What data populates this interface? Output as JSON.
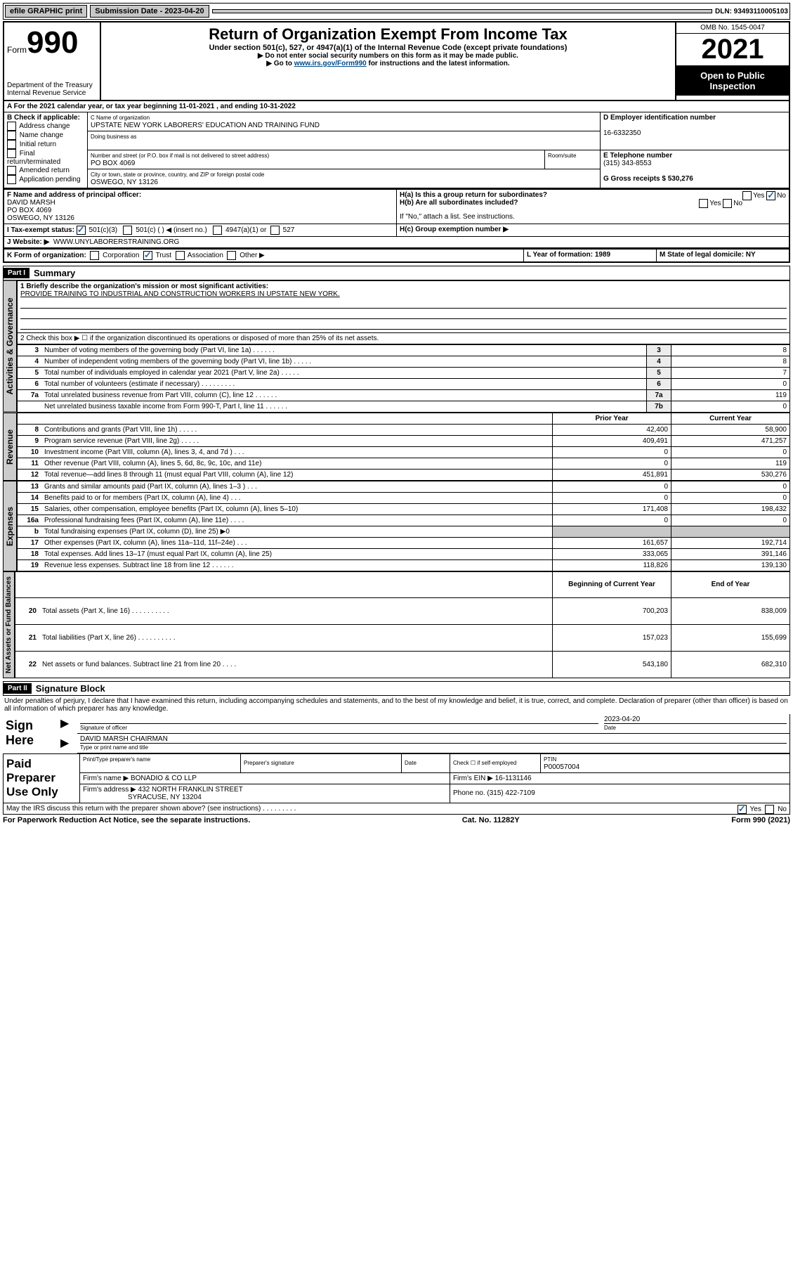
{
  "topbar": {
    "efile": "efile GRAPHIC print",
    "submission_label": "Submission Date - 2023-04-20",
    "dln_label": "DLN: 93493110005103"
  },
  "header": {
    "form_word": "Form",
    "form_number": "990",
    "dept": "Department of the Treasury",
    "irs": "Internal Revenue Service",
    "title": "Return of Organization Exempt From Income Tax",
    "subtitle": "Under section 501(c), 527, or 4947(a)(1) of the Internal Revenue Code (except private foundations)",
    "instr1": "▶ Do not enter social security numbers on this form as it may be made public.",
    "instr2_pre": "▶ Go to ",
    "instr2_link": "www.irs.gov/Form990",
    "instr2_post": " for instructions and the latest information.",
    "omb": "OMB No. 1545-0047",
    "year": "2021",
    "open": "Open to Public Inspection"
  },
  "A": {
    "line": "A For the 2021 calendar year, or tax year beginning 11-01-2021   , and ending 10-31-2022"
  },
  "B": {
    "label": "B Check if applicable:",
    "opts": [
      "Address change",
      "Name change",
      "Initial return",
      "Final return/terminated",
      "Amended return",
      "Application pending"
    ]
  },
  "C": {
    "name_label": "C Name of organization",
    "name": "UPSTATE NEW YORK LABORERS' EDUCATION AND TRAINING FUND",
    "dba_label": "Doing business as",
    "street_label": "Number and street (or P.O. box if mail is not delivered to street address)",
    "room_label": "Room/suite",
    "street": "PO BOX 4069",
    "city_label": "City or town, state or province, country, and ZIP or foreign postal code",
    "city": "OSWEGO, NY  13126"
  },
  "D": {
    "label": "D Employer identification number",
    "val": "16-6332350"
  },
  "E": {
    "label": "E Telephone number",
    "val": "(315) 343-8553"
  },
  "G": {
    "label": "G Gross receipts $ 530,276"
  },
  "F": {
    "label": "F Name and address of principal officer:",
    "name": "DAVID MARSH",
    "street": "PO BOX 4069",
    "city": "OSWEGO, NY  13126"
  },
  "H": {
    "a": "H(a)  Is this a group return for subordinates?",
    "b": "H(b)  Are all subordinates included?",
    "b_note": "If \"No,\" attach a list. See instructions.",
    "c": "H(c)  Group exemption number ▶",
    "yes": "Yes",
    "no": "No"
  },
  "I": {
    "label": "I    Tax-exempt status:",
    "o1": "501(c)(3)",
    "o2": "501(c) (  ) ◀ (insert no.)",
    "o3": "4947(a)(1) or",
    "o4": "527"
  },
  "J": {
    "label": "J   Website: ▶",
    "val": "WWW.UNYLABORERSTRAINING.ORG"
  },
  "K": {
    "label": "K Form of organization:",
    "opts": [
      "Corporation",
      "Trust",
      "Association",
      "Other ▶"
    ]
  },
  "L": {
    "label": "L Year of formation: 1989"
  },
  "M": {
    "label": "M State of legal domicile: NY"
  },
  "part1": {
    "header": "Part I",
    "title": "Summary",
    "side_gov": "Activities & Governance",
    "side_rev": "Revenue",
    "side_exp": "Expenses",
    "side_net": "Net Assets or Fund Balances",
    "l1_label": "1   Briefly describe the organization's mission or most significant activities:",
    "l1_val": "PROVIDE TRAINING TO INDUSTRIAL AND CONSTRUCTION WORKERS IN UPSTATE NEW YORK.",
    "l2": "2   Check this box ▶ ☐  if the organization discontinued its operations or disposed of more than 25% of its net assets.",
    "rows_top": [
      {
        "n": "3",
        "desc": "Number of voting members of the governing body (Part VI, line 1a)  .    .    .    .    .    .",
        "box": "3",
        "val": "8"
      },
      {
        "n": "4",
        "desc": "Number of independent voting members of the governing body (Part VI, line 1b)   .    .    .    .    .",
        "box": "4",
        "val": "8"
      },
      {
        "n": "5",
        "desc": "Total number of individuals employed in calendar year 2021 (Part V, line 2a)   .    .    .    .    .",
        "box": "5",
        "val": "7"
      },
      {
        "n": "6",
        "desc": "Total number of volunteers (estimate if necessary)   .    .    .    .    .    .    .    .    .",
        "box": "6",
        "val": "0"
      },
      {
        "n": "7a",
        "desc": "Total unrelated business revenue from Part VIII, column (C), line 12   .    .    .    .    .    .",
        "box": "7a",
        "val": "119"
      },
      {
        "n": "",
        "desc": "Net unrelated business taxable income from Form 990-T, Part I, line 11   .    .    .    .    .    .",
        "box": "7b",
        "val": "0"
      }
    ],
    "col_prior": "Prior Year",
    "col_current": "Current Year",
    "revenue_rows": [
      {
        "n": "8",
        "desc": "Contributions and grants (Part VIII, line 1h)    .    .    .    .    .",
        "p": "42,400",
        "c": "58,900"
      },
      {
        "n": "9",
        "desc": "Program service revenue (Part VIII, line 2g)    .    .    .    .    .",
        "p": "409,491",
        "c": "471,257"
      },
      {
        "n": "10",
        "desc": "Investment income (Part VIII, column (A), lines 3, 4, and 7d )    .    .    .",
        "p": "0",
        "c": "0"
      },
      {
        "n": "11",
        "desc": "Other revenue (Part VIII, column (A), lines 5, 6d, 8c, 9c, 10c, and 11e)",
        "p": "0",
        "c": "119"
      },
      {
        "n": "12",
        "desc": "Total revenue—add lines 8 through 11 (must equal Part VIII, column (A), line 12)",
        "p": "451,891",
        "c": "530,276"
      }
    ],
    "expense_rows": [
      {
        "n": "13",
        "desc": "Grants and similar amounts paid (Part IX, column (A), lines 1–3 )    .    .    .",
        "p": "0",
        "c": "0"
      },
      {
        "n": "14",
        "desc": "Benefits paid to or for members (Part IX, column (A), line 4)    .    .    .",
        "p": "0",
        "c": "0"
      },
      {
        "n": "15",
        "desc": "Salaries, other compensation, employee benefits (Part IX, column (A), lines 5–10)",
        "p": "171,408",
        "c": "198,432"
      },
      {
        "n": "16a",
        "desc": "Professional fundraising fees (Part IX, column (A), line 11e)    .    .    .    .",
        "p": "0",
        "c": "0"
      },
      {
        "n": "b",
        "desc": "Total fundraising expenses (Part IX, column (D), line 25) ▶0",
        "p": "",
        "c": "",
        "shaded": true
      },
      {
        "n": "17",
        "desc": "Other expenses (Part IX, column (A), lines 11a–11d, 11f–24e)    .    .    .",
        "p": "161,657",
        "c": "192,714"
      },
      {
        "n": "18",
        "desc": "Total expenses. Add lines 13–17 (must equal Part IX, column (A), line 25)",
        "p": "333,065",
        "c": "391,146"
      },
      {
        "n": "19",
        "desc": "Revenue less expenses. Subtract line 18 from line 12    .    .    .    .    .    .",
        "p": "118,826",
        "c": "139,130"
      }
    ],
    "col_begin": "Beginning of Current Year",
    "col_end": "End of Year",
    "net_rows": [
      {
        "n": "20",
        "desc": "Total assets (Part X, line 16)    .    .    .    .    .    .    .    .    .    .",
        "p": "700,203",
        "c": "838,009"
      },
      {
        "n": "21",
        "desc": "Total liabilities (Part X, line 26)    .    .    .    .    .    .    .    .    .    .",
        "p": "157,023",
        "c": "155,699"
      },
      {
        "n": "22",
        "desc": "Net assets or fund balances. Subtract line 21 from line 20    .    .    .    .",
        "p": "543,180",
        "c": "682,310"
      }
    ]
  },
  "part2": {
    "header": "Part II",
    "title": "Signature Block",
    "penalty": "Under penalties of perjury, I declare that I have examined this return, including accompanying schedules and statements, and to the best of my knowledge and belief, it is true, correct, and complete. Declaration of preparer (other than officer) is based on all information of which preparer has any knowledge.",
    "sign_here": "Sign Here",
    "sig_officer": "Signature of officer",
    "sig_date_val": "2023-04-20",
    "sig_date": "Date",
    "officer_name": "DAVID MARSH CHAIRMAN",
    "type_name": "Type or print name and title",
    "paid_preparer": "Paid Preparer Use Only",
    "prep_name_label": "Print/Type preparer's name",
    "prep_sig_label": "Preparer's signature",
    "date_label": "Date",
    "check_self": "Check ☐ if self-employed",
    "ptin_label": "PTIN",
    "ptin_val": "P00057004",
    "firm_name_label": "Firm's name    ▶",
    "firm_name": "BONADIO & CO LLP",
    "firm_ein_label": "Firm's EIN ▶",
    "firm_ein": "16-1131146",
    "firm_addr_label": "Firm's address ▶",
    "firm_addr1": "432 NORTH FRANKLIN STREET",
    "firm_addr2": "SYRACUSE, NY 13204",
    "phone_label": "Phone no.",
    "phone_val": "(315) 422-7109",
    "discuss": "May the IRS discuss this return with the preparer shown above? (see instructions)    .    .    .    .    .    .    .    .    ."
  },
  "footer": {
    "left": "For Paperwork Reduction Act Notice, see the separate instructions.",
    "center": "Cat. No. 11282Y",
    "right": "Form 990 (2021)"
  }
}
